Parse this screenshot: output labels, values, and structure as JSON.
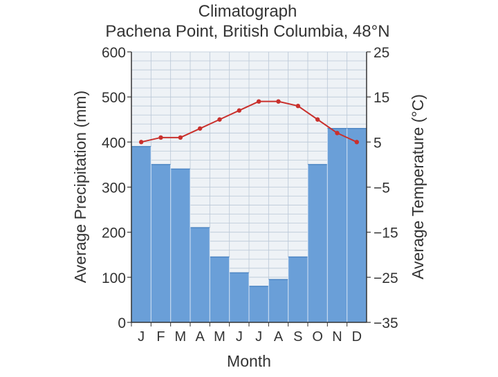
{
  "chart_data": {
    "type": "bar+line",
    "title": "Climatograph",
    "subtitle": "Pachena Point, British Columbia, 48°N",
    "xlabel": "Month",
    "ylabel_left": "Average Precipitation (mm)",
    "ylabel_right": "Average Temperature (°C)",
    "categories": [
      "J",
      "F",
      "M",
      "A",
      "M",
      "J",
      "J",
      "A",
      "S",
      "O",
      "N",
      "D"
    ],
    "y_left": {
      "lim": [
        0,
        600
      ],
      "ticks": [
        0,
        100,
        200,
        300,
        400,
        500,
        600
      ],
      "tick_labels": [
        "0",
        "100",
        "200",
        "300",
        "400",
        "500",
        "600"
      ]
    },
    "y_right": {
      "lim": [
        -35,
        25
      ],
      "ticks": [
        -35,
        -25,
        -15,
        -5,
        5,
        15,
        25
      ],
      "tick_labels": [
        "−35",
        "−25",
        "−15",
        "−5",
        "5",
        "15",
        "25"
      ]
    },
    "series": [
      {
        "name": "Average Precipitation (mm)",
        "type": "bar",
        "axis": "left",
        "color": "#6a9fd8",
        "values": [
          390,
          350,
          340,
          210,
          145,
          110,
          80,
          95,
          145,
          350,
          430,
          430
        ]
      },
      {
        "name": "Average Temperature (°C)",
        "type": "line",
        "axis": "right",
        "color": "#c9302c",
        "values": [
          5,
          6,
          6,
          8,
          10,
          12,
          14,
          14,
          13,
          10,
          7,
          5
        ]
      }
    ],
    "grid": true,
    "colors": {
      "plot_background": "#eef2f6",
      "grid": "#b9c7d6",
      "axis": "#333333"
    }
  }
}
